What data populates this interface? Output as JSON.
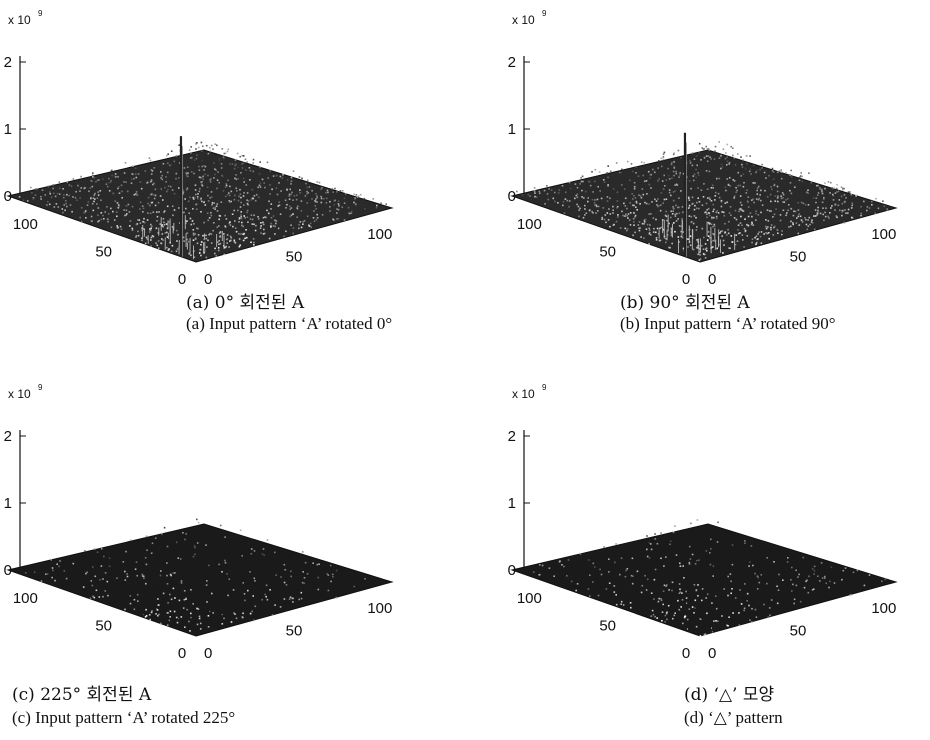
{
  "chart_data": [
    {
      "type": "surface3d",
      "scale_label": "x 10",
      "scale_exponent": "9",
      "z_ticks": [
        "0",
        "1",
        "2"
      ],
      "zlim": [
        0,
        2
      ],
      "y_ticks": [
        "0",
        "50",
        "100"
      ],
      "x_ticks": [
        "0",
        "50",
        "100"
      ],
      "xlim": [
        0,
        120
      ],
      "ylim": [
        0,
        120
      ],
      "peak_value": 1.8,
      "peak_location": [
        0,
        0
      ],
      "noise_level": 0.08,
      "caption_ko": "(a) 0° 회전된 A",
      "caption_en": "(a) Input pattern ‘A’ rotated 0°"
    },
    {
      "type": "surface3d",
      "scale_label": "x 10",
      "scale_exponent": "9",
      "z_ticks": [
        "0",
        "1",
        "2"
      ],
      "zlim": [
        0,
        2
      ],
      "y_ticks": [
        "0",
        "50",
        "100"
      ],
      "x_ticks": [
        "0",
        "50",
        "100"
      ],
      "xlim": [
        0,
        120
      ],
      "ylim": [
        0,
        120
      ],
      "peak_value": 1.85,
      "peak_location": [
        0,
        0
      ],
      "noise_level": 0.1,
      "caption_ko": "(b) 90° 회전된 A",
      "caption_en": "(b) Input pattern ‘A’ rotated 90°"
    },
    {
      "type": "surface3d",
      "scale_label": "x 10",
      "scale_exponent": "9",
      "z_ticks": [
        "0",
        "1",
        "2"
      ],
      "zlim": [
        0,
        2
      ],
      "y_ticks": [
        "0",
        "50",
        "100"
      ],
      "x_ticks": [
        "0",
        "50",
        "100"
      ],
      "xlim": [
        0,
        120
      ],
      "ylim": [
        0,
        120
      ],
      "peak_value": 0.02,
      "peak_location": [
        0,
        0
      ],
      "noise_level": 0.02,
      "caption_ko": "(c) 225° 회전된 A",
      "caption_en": "(c) Input pattern ‘A’ rotated 225°"
    },
    {
      "type": "surface3d",
      "scale_label": "x 10",
      "scale_exponent": "9",
      "z_ticks": [
        "0",
        "1",
        "2"
      ],
      "zlim": [
        0,
        2
      ],
      "y_ticks": [
        "0",
        "50",
        "100"
      ],
      "x_ticks": [
        "0",
        "50",
        "100"
      ],
      "xlim": [
        0,
        120
      ],
      "ylim": [
        0,
        120
      ],
      "peak_value": 0.02,
      "peak_location": [
        0,
        0
      ],
      "noise_level": 0.02,
      "caption_ko": "(d) ‘△’ 모양",
      "caption_en": "(d) ‘△’ pattern"
    }
  ]
}
